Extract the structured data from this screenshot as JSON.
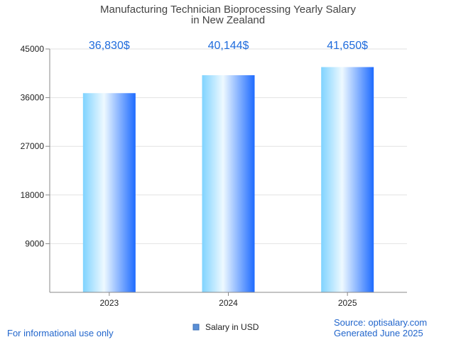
{
  "chart_data": {
    "type": "bar",
    "title": [
      "Manufacturing Technician Bioprocessing Yearly Salary",
      "in New Zealand"
    ],
    "categories": [
      "2023",
      "2024",
      "2025"
    ],
    "series": [
      {
        "name": "Salary in USD",
        "values": [
          36830,
          40144,
          41650
        ]
      }
    ],
    "data_labels": [
      "36,830$",
      "40,144$",
      "41,650$"
    ],
    "y_ticks": [
      9000,
      18000,
      27000,
      36000,
      45000
    ],
    "ylim": [
      0,
      45000
    ],
    "grid": true,
    "legend": "bottom-center"
  },
  "colors": {
    "bar_light": "#e8f8ff",
    "bar_mid": "#7fd3ff",
    "bar_dark": "#1e6bff",
    "data_label": "#1e6bdc",
    "footer": "#2266cc",
    "legend_swatch": "#5a8fd6"
  },
  "footer": {
    "disclaimer": "For informational use only",
    "source": "Source: optisalary.com",
    "generated": "Generated June 2025"
  }
}
